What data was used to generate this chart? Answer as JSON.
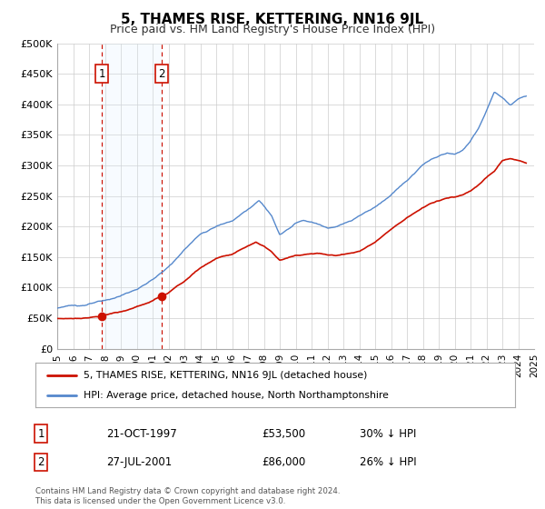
{
  "title": "5, THAMES RISE, KETTERING, NN16 9JL",
  "subtitle": "Price paid vs. HM Land Registry's House Price Index (HPI)",
  "ylim": [
    0,
    500000
  ],
  "xlim": [
    1995,
    2025
  ],
  "yticks": [
    0,
    50000,
    100000,
    150000,
    200000,
    250000,
    300000,
    350000,
    400000,
    450000,
    500000
  ],
  "ytick_labels": [
    "£0",
    "£50K",
    "£100K",
    "£150K",
    "£200K",
    "£250K",
    "£300K",
    "£350K",
    "£400K",
    "£450K",
    "£500K"
  ],
  "hpi_color": "#5588cc",
  "price_color": "#cc1100",
  "shade_color": "#ddeeff",
  "vline_color": "#cc1100",
  "grid_color": "#cccccc",
  "bg_color": "#ffffff",
  "sale1_x": 1997.8,
  "sale1_y": 53500,
  "sale2_x": 2001.55,
  "sale2_y": 86000,
  "shade_x1": 1997.8,
  "shade_x2": 2001.55,
  "legend_price_label": "5, THAMES RISE, KETTERING, NN16 9JL (detached house)",
  "legend_hpi_label": "HPI: Average price, detached house, North Northamptonshire",
  "table_row1": [
    "1",
    "21-OCT-1997",
    "£53,500",
    "30% ↓ HPI"
  ],
  "table_row2": [
    "2",
    "27-JUL-2001",
    "£86,000",
    "26% ↓ HPI"
  ],
  "footnote": "Contains HM Land Registry data © Crown copyright and database right 2024.\nThis data is licensed under the Open Government Licence v3.0.",
  "title_fontsize": 11,
  "subtitle_fontsize": 9
}
